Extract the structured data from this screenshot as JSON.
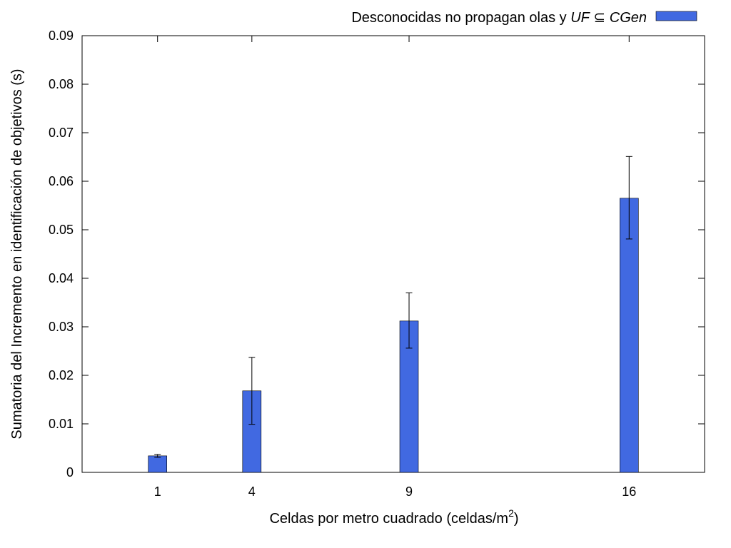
{
  "chart_data": {
    "type": "bar",
    "categories": [
      "1",
      "4",
      "9",
      "16"
    ],
    "x": [
      1,
      4,
      9,
      16
    ],
    "series": [
      {
        "name": "Desconocidas no propagan olas y UF ⊆ CGen",
        "color": "#4169e1",
        "values": [
          0.0034,
          0.0168,
          0.0312,
          0.0565
        ],
        "error_low": [
          0.0031,
          0.0099,
          0.0256,
          0.0481
        ],
        "error_high": [
          0.0037,
          0.0237,
          0.037,
          0.0651
        ]
      }
    ],
    "legend": {
      "prefix": "Desconocidas no propagan olas y ",
      "italic1": "UF",
      "symbol": " ⊆ ",
      "italic2": "CGen",
      "placement": "top-right, outside plot"
    },
    "xlabel": {
      "main": "Celdas por metro cuadrado (celdas/m",
      "sup": "2",
      "close": ")"
    },
    "ylabel": "Sumatoria del Incremento en identificación de objetivos (s)",
    "xlim": [
      -1.4,
      18.4
    ],
    "ylim": [
      0,
      0.09
    ],
    "yticks": [
      "0",
      "0.01",
      "0.02",
      "0.03",
      "0.04",
      "0.05",
      "0.06",
      "0.07",
      "0.08",
      "0.09"
    ],
    "grid": false
  }
}
